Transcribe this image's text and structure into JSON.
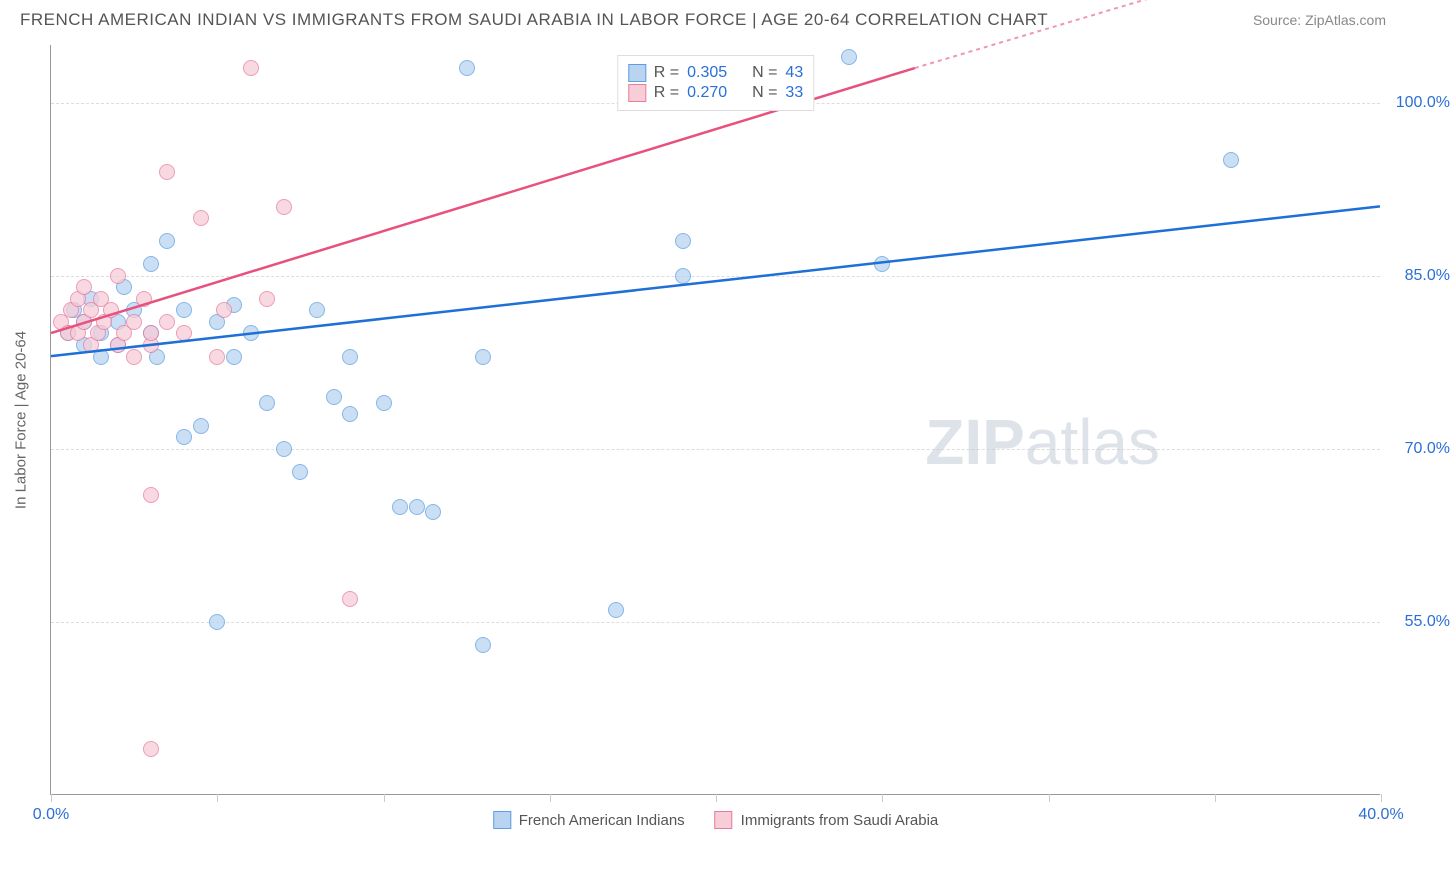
{
  "header": {
    "title": "FRENCH AMERICAN INDIAN VS IMMIGRANTS FROM SAUDI ARABIA IN LABOR FORCE | AGE 20-64 CORRELATION CHART",
    "source": "Source: ZipAtlas.com"
  },
  "chart": {
    "type": "scatter",
    "y_axis_title": "In Labor Force | Age 20-64",
    "xlim": [
      0,
      40
    ],
    "ylim": [
      40,
      105
    ],
    "x_ticks": [
      0,
      5,
      10,
      15,
      20,
      25,
      30,
      35,
      40
    ],
    "x_tick_labels": {
      "0": "0.0%",
      "40": "40.0%"
    },
    "y_ticks": [
      55,
      70,
      85,
      100
    ],
    "y_tick_labels": {
      "55": "55.0%",
      "70": "70.0%",
      "85": "85.0%",
      "100": "100.0%"
    },
    "background_color": "#ffffff",
    "grid_color": "#dddddd",
    "axis_color": "#999999",
    "watermark": {
      "zip": "ZIP",
      "atlas": "atlas"
    },
    "series": [
      {
        "id": "blue",
        "name": "French American Indians",
        "fill": "#b9d4f1",
        "stroke": "#5e9fe0",
        "line_color": "#1e6fd6",
        "r_label": "R = ",
        "r_value": "0.305",
        "n_label": "N = ",
        "n_value": "43",
        "trend": {
          "x1": 0,
          "y1": 78,
          "x2": 40,
          "y2": 91
        },
        "points": [
          [
            0.5,
            80
          ],
          [
            0.7,
            82
          ],
          [
            1,
            79
          ],
          [
            1,
            81
          ],
          [
            1.2,
            83
          ],
          [
            1.5,
            78
          ],
          [
            1.5,
            80
          ],
          [
            2,
            79
          ],
          [
            2,
            81
          ],
          [
            2.2,
            84
          ],
          [
            2.5,
            82
          ],
          [
            3,
            80
          ],
          [
            3,
            86
          ],
          [
            3.2,
            78
          ],
          [
            3.5,
            88
          ],
          [
            4,
            82
          ],
          [
            4.5,
            72
          ],
          [
            5,
            81
          ],
          [
            5.5,
            78
          ],
          [
            5,
            55
          ],
          [
            6,
            80
          ],
          [
            6.5,
            74
          ],
          [
            7,
            70
          ],
          [
            7.5,
            68
          ],
          [
            8,
            82
          ],
          [
            8.5,
            74.5
          ],
          [
            9,
            73
          ],
          [
            9,
            78
          ],
          [
            10,
            74
          ],
          [
            10.5,
            65
          ],
          [
            11,
            65
          ],
          [
            11.5,
            64.5
          ],
          [
            12.5,
            103
          ],
          [
            13,
            78
          ],
          [
            13,
            53
          ],
          [
            17,
            56
          ],
          [
            19,
            88
          ],
          [
            19,
            85
          ],
          [
            24,
            104
          ],
          [
            25,
            86
          ],
          [
            35.5,
            95
          ],
          [
            4,
            71
          ],
          [
            5.5,
            82.5
          ]
        ]
      },
      {
        "id": "pink",
        "name": "Immigrants from Saudi Arabia",
        "fill": "#f7cdd8",
        "stroke": "#e87ca0",
        "line_color": "#e8517e",
        "r_label": "R = ",
        "r_value": "0.270",
        "n_label": "N = ",
        "n_value": "33",
        "trend": {
          "x1": 0,
          "y1": 80,
          "x2": 26,
          "y2": 103
        },
        "trend_dash_ext": {
          "x1": 26,
          "y1": 103,
          "x2": 33,
          "y2": 109
        },
        "points": [
          [
            0.3,
            81
          ],
          [
            0.5,
            80
          ],
          [
            0.6,
            82
          ],
          [
            0.8,
            83
          ],
          [
            0.8,
            80
          ],
          [
            1,
            81
          ],
          [
            1,
            84
          ],
          [
            1.2,
            82
          ],
          [
            1.2,
            79
          ],
          [
            1.4,
            80
          ],
          [
            1.5,
            83
          ],
          [
            1.6,
            81
          ],
          [
            1.8,
            82
          ],
          [
            2,
            79
          ],
          [
            2,
            85
          ],
          [
            2.2,
            80
          ],
          [
            2.5,
            81
          ],
          [
            2.5,
            78
          ],
          [
            2.8,
            83
          ],
          [
            3,
            79
          ],
          [
            3,
            80
          ],
          [
            3.5,
            81
          ],
          [
            3.5,
            94
          ],
          [
            4,
            80
          ],
          [
            4.5,
            90
          ],
          [
            5,
            78
          ],
          [
            5.2,
            82
          ],
          [
            6,
            103
          ],
          [
            7,
            91
          ],
          [
            3,
            66
          ],
          [
            3,
            44
          ],
          [
            9,
            57
          ],
          [
            6.5,
            83
          ]
        ]
      }
    ],
    "legend_bottom": [
      {
        "label": "French American Indians",
        "fill": "#b9d4f1",
        "stroke": "#5e9fe0"
      },
      {
        "label": "Immigrants from Saudi Arabia",
        "fill": "#f7cdd8",
        "stroke": "#e87ca0"
      }
    ]
  }
}
